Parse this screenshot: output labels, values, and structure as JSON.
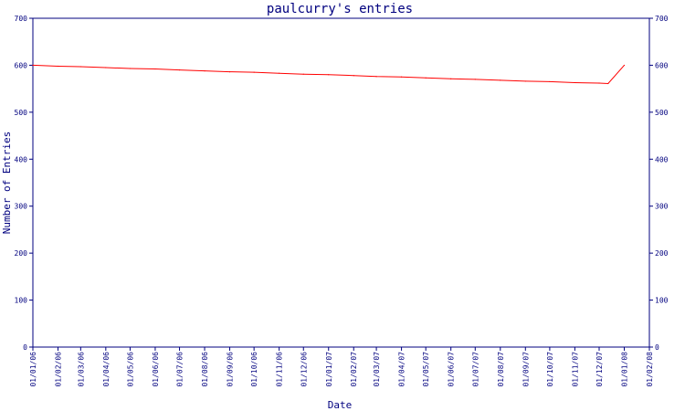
{
  "chart_data": {
    "type": "line",
    "title": "paulcurry's entries",
    "xlabel": "Date",
    "ylabel": "Number of Entries",
    "ylim": [
      0,
      700
    ],
    "yticks": [
      0,
      100,
      200,
      300,
      400,
      500,
      600,
      700
    ],
    "x_ticks": [
      "01/01/06",
      "01/02/06",
      "01/03/06",
      "01/04/06",
      "01/05/06",
      "01/06/06",
      "01/07/06",
      "01/08/06",
      "01/09/06",
      "01/10/06",
      "01/11/06",
      "01/12/06",
      "01/01/07",
      "01/02/07",
      "01/03/07",
      "01/04/07",
      "01/05/07",
      "01/06/07",
      "01/07/07",
      "01/08/07",
      "01/09/07",
      "01/10/07",
      "01/11/07",
      "01/12/07",
      "01/01/08",
      "01/02/08"
    ],
    "grid": false,
    "line_color": "#ff0000",
    "axis_color": "#00007f",
    "series": [
      {
        "x": [
          "01/01/06",
          "01/02/06",
          "01/03/06",
          "01/04/06",
          "01/05/06",
          "01/06/06",
          "01/07/06",
          "01/08/06",
          "01/09/06",
          "01/10/06",
          "01/11/06",
          "01/12/06",
          "01/01/07",
          "01/02/07",
          "01/03/07",
          "01/04/07",
          "01/05/07",
          "01/06/07",
          "01/07/07",
          "01/08/07",
          "01/09/07",
          "01/10/07",
          "01/11/07",
          "01/12/07",
          "12/12/07",
          "01/01/08"
        ],
        "values": [
          600,
          598,
          597,
          595,
          593,
          592,
          590,
          588,
          586,
          585,
          583,
          581,
          580,
          578,
          576,
          575,
          573,
          571,
          570,
          568,
          566,
          565,
          563,
          562,
          561,
          600
        ]
      }
    ]
  }
}
